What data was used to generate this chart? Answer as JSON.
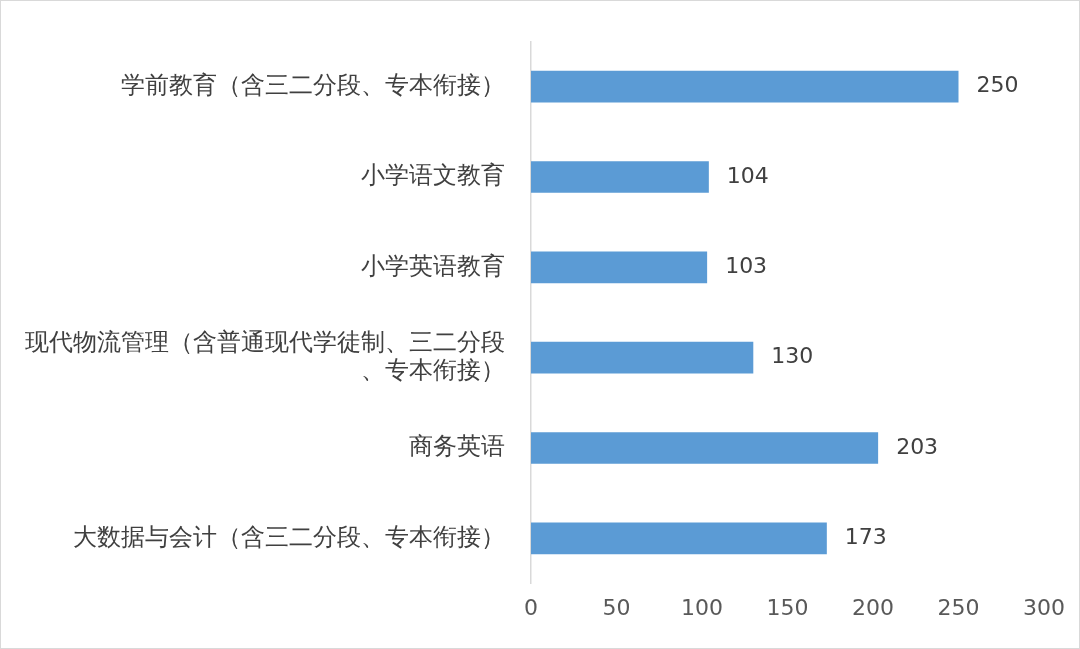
{
  "chart_data": {
    "type": "bar",
    "orientation": "horizontal",
    "categories": [
      "学前教育（含三二分段、专本衔接）",
      "小学语文教育",
      "小学英语教育",
      "现代物流管理（含普通现代学徒制、三二分段、专本衔接）",
      "商务英语",
      "大数据与会计（含三二分段、专本衔接）"
    ],
    "values": [
      250,
      104,
      103,
      130,
      203,
      173
    ],
    "color": "#5b9bd5",
    "xlim": [
      0,
      300
    ],
    "xticks": [
      0,
      50,
      100,
      150,
      200,
      250,
      300
    ],
    "data_labels": true
  }
}
